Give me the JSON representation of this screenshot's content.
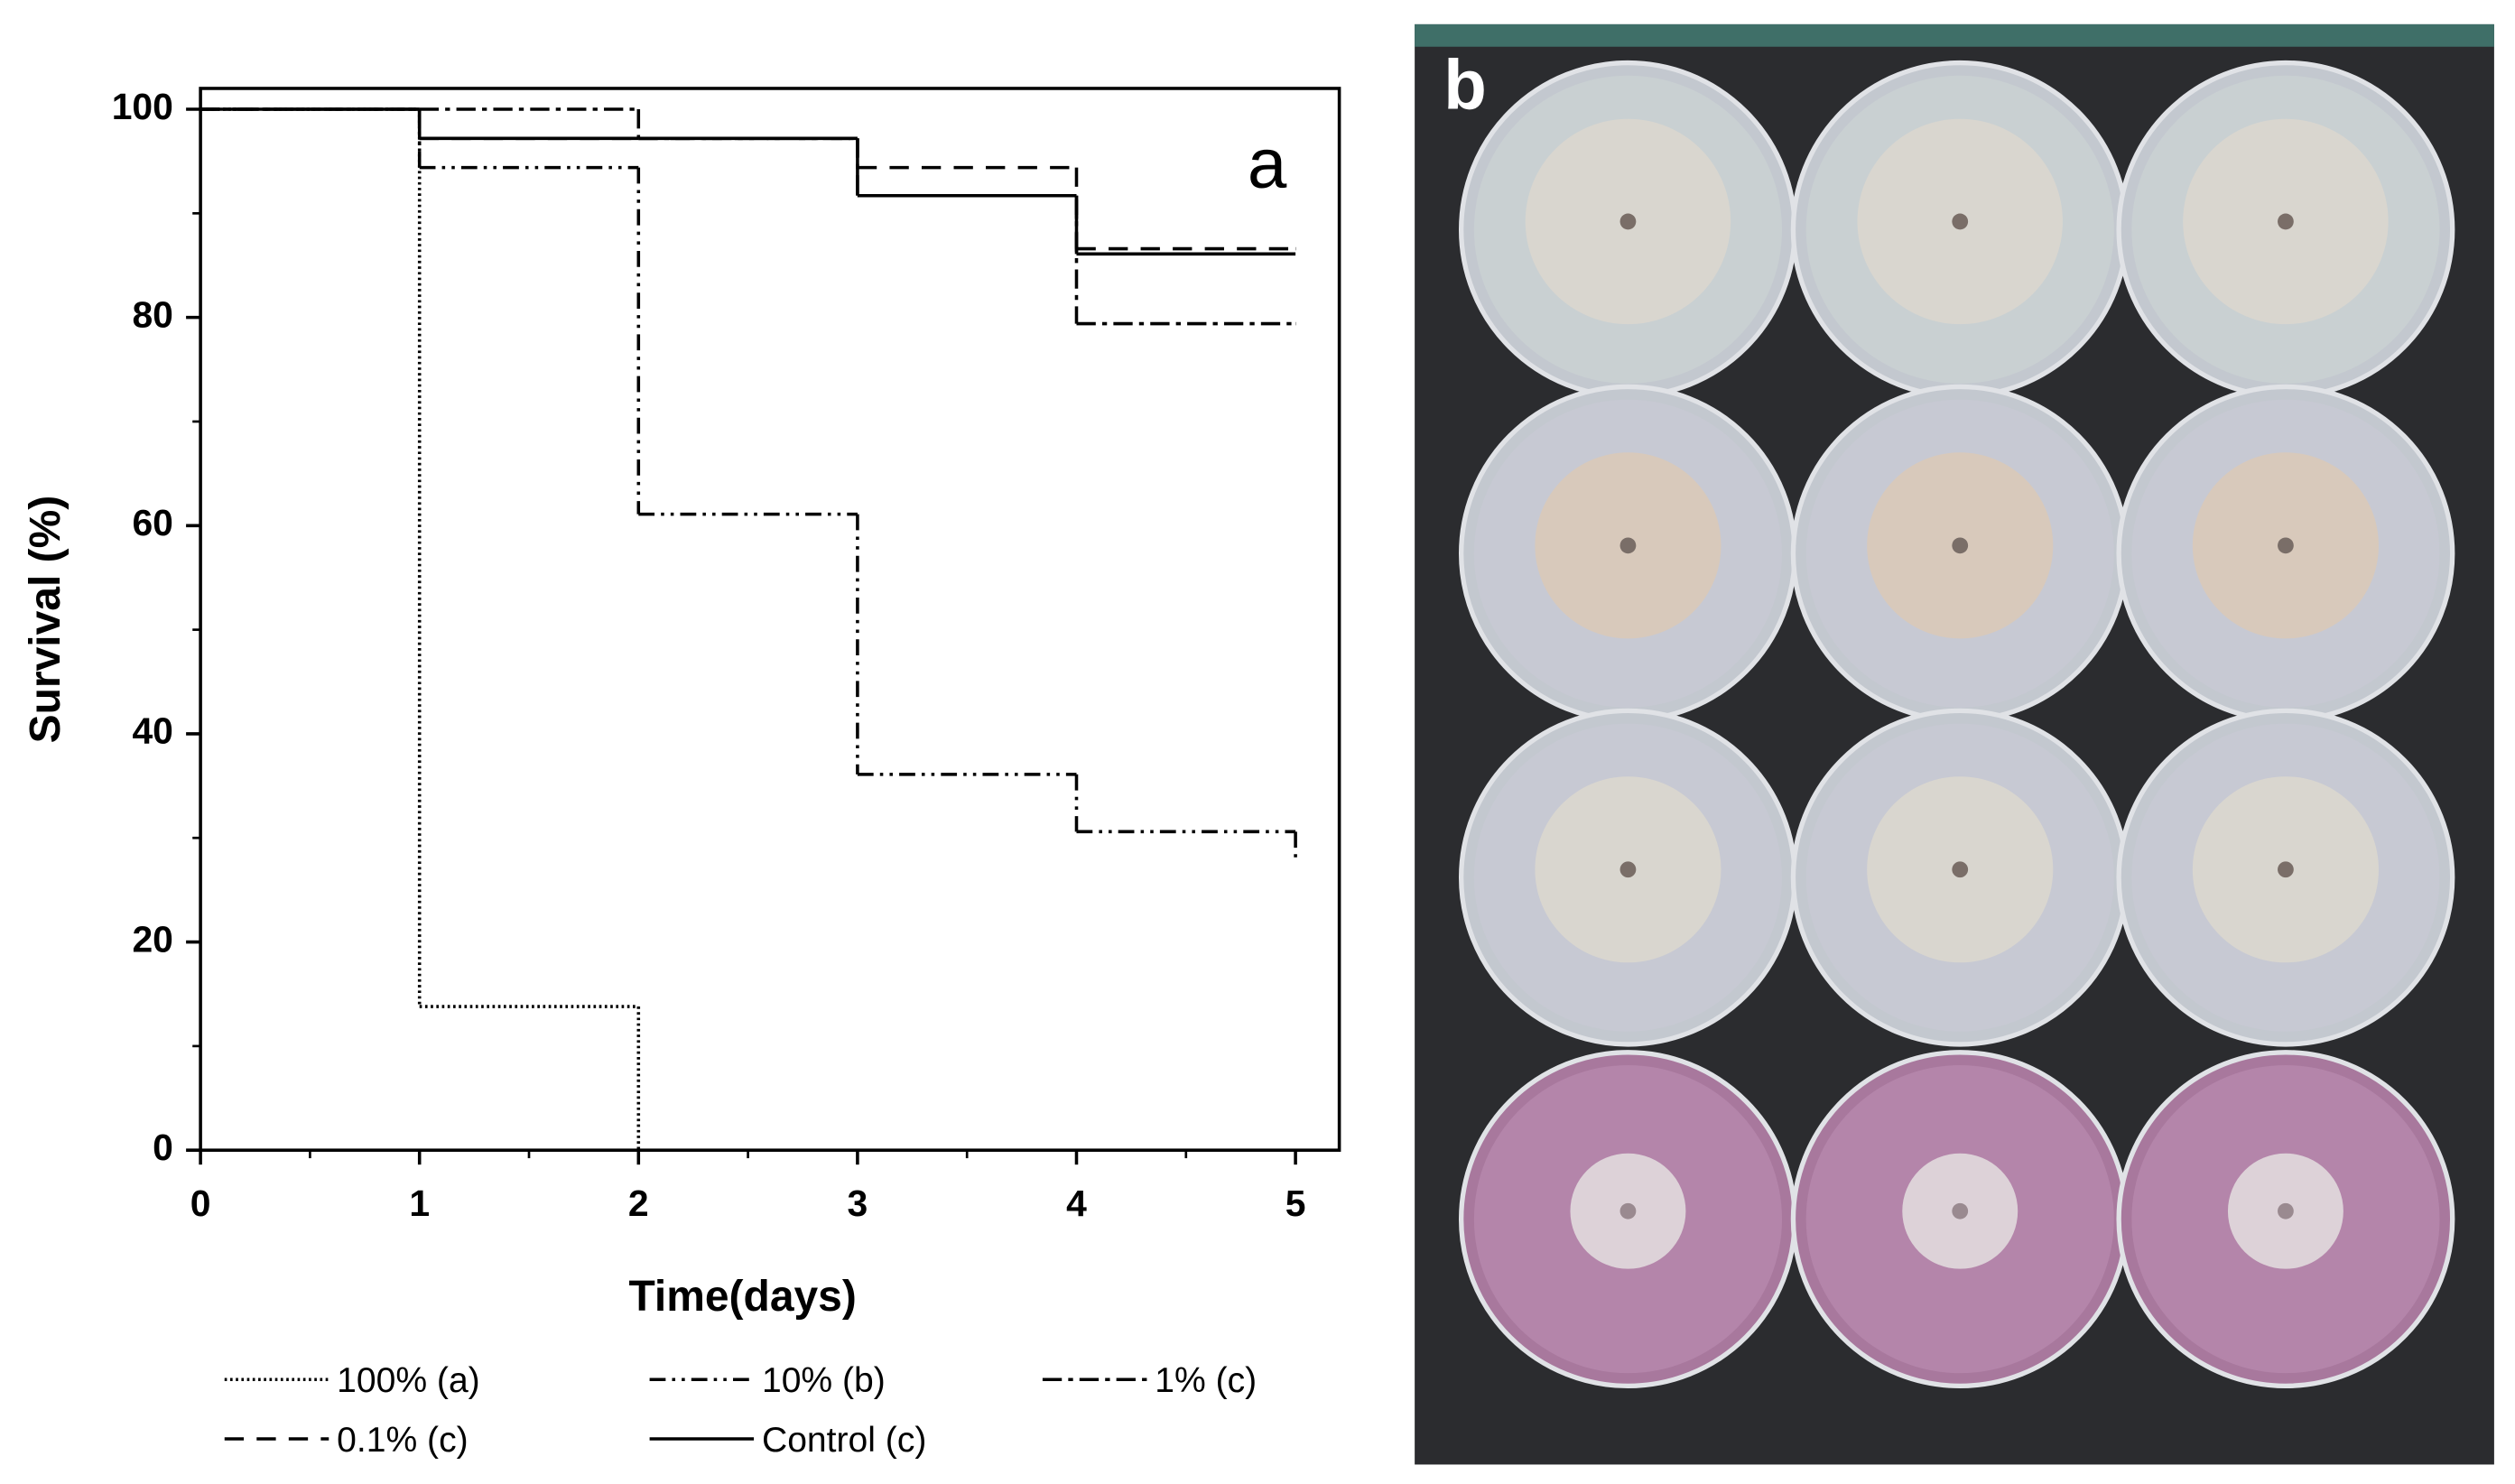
{
  "chart_data": {
    "type": "step",
    "x_label": "Time(days)",
    "y_label": "Survival (%)",
    "annotation": "a",
    "x": [
      0,
      1,
      2,
      3,
      4,
      5
    ],
    "xlim": [
      0,
      5.2
    ],
    "xticks": [
      0,
      1,
      2,
      3,
      4,
      5
    ],
    "ylim": [
      0,
      102
    ],
    "yticks": [
      0,
      20,
      40,
      60,
      80,
      100
    ],
    "series": [
      {
        "name": "100% (a)",
        "color": "#000000",
        "style": "dotted",
        "values": [
          100,
          13.8,
          0,
          null,
          null,
          null
        ]
      },
      {
        "name": "10% (b)",
        "color": "#000000",
        "style": "dash-dot-dot",
        "values": [
          100,
          94.4,
          61.1,
          36.1,
          30.6,
          27.8
        ]
      },
      {
        "name": "1% (c)",
        "color": "#000000",
        "style": "dash-dot",
        "values": [
          100,
          100,
          97.2,
          91.7,
          79.4,
          79.4
        ]
      },
      {
        "name": "0.1% (c)",
        "color": "#000000",
        "style": "dashed",
        "values": [
          100,
          97.2,
          97.2,
          94.4,
          86.6,
          86.6
        ]
      },
      {
        "name": "Control (c)",
        "color": "#000000",
        "style": "solid",
        "values": [
          100,
          97.2,
          97.2,
          91.7,
          86.1,
          86.1
        ]
      }
    ]
  },
  "photo": {
    "label": "b"
  }
}
